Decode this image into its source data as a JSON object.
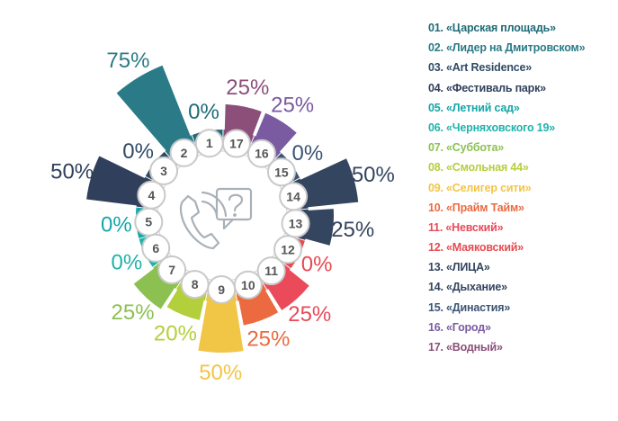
{
  "chart_data": {
    "type": "radial-bar",
    "title": "",
    "max_value": 75,
    "items": [
      {
        "number": "1",
        "label": "01. «Царская  площадь»",
        "value": 0,
        "value_label": "0%",
        "color": "#1f6b78"
      },
      {
        "number": "2",
        "label": "02. «Лидер на Дмитровском»",
        "value": 75,
        "value_label": "75%",
        "color": "#2a7b87"
      },
      {
        "number": "3",
        "label": "03. «Art Residence»",
        "value": 0,
        "value_label": "0%",
        "color": "#2f4a66"
      },
      {
        "number": "4",
        "label": "04. «Фестиваль парк»",
        "value": 50,
        "value_label": "50%",
        "color": "#30405c"
      },
      {
        "number": "5",
        "label": "05. «Летний сад»",
        "value": 0,
        "value_label": "0%",
        "color": "#15a6a8"
      },
      {
        "number": "6",
        "label": "06. «Черняховского 19»",
        "value": 0,
        "value_label": "0%",
        "color": "#1fb3ab"
      },
      {
        "number": "7",
        "label": "07. «Суббота»",
        "value": 25,
        "value_label": "25%",
        "color": "#8cc152"
      },
      {
        "number": "8",
        "label": "08. «Смольная 44»",
        "value": 20,
        "value_label": "20%",
        "color": "#b4cf3c"
      },
      {
        "number": "9",
        "label": "09. «Селигер сити»",
        "value": 50,
        "value_label": "50%",
        "color": "#f1c545"
      },
      {
        "number": "10",
        "label": "10. «Прайм Тайм»",
        "value": 25,
        "value_label": "25%",
        "color": "#eb6a3f"
      },
      {
        "number": "11",
        "label": "11. «Невский»",
        "value": 25,
        "value_label": "25%",
        "color": "#ea4a5a"
      },
      {
        "number": "12",
        "label": "12. «Маяковский»",
        "value": 0,
        "value_label": "0%",
        "color": "#e64b52"
      },
      {
        "number": "13",
        "label": "13. «ЛИЦА»",
        "value": 25,
        "value_label": "25%",
        "color": "#34455f"
      },
      {
        "number": "14",
        "label": "14. «Дыхание»",
        "value": 50,
        "value_label": "50%",
        "color": "#34455f"
      },
      {
        "number": "15",
        "label": "15. «Династия»",
        "value": 0,
        "value_label": "0%",
        "color": "#3b5573"
      },
      {
        "number": "16",
        "label": "16. «Город»",
        "value": 25,
        "value_label": "25%",
        "color": "#7a5aa0"
      },
      {
        "number": "17",
        "label": "17. «Водный»",
        "value": 25,
        "value_label": "25%",
        "color": "#8b4f7a"
      }
    ]
  },
  "icons": {
    "center": "phone-with-question-bubble-icon"
  }
}
